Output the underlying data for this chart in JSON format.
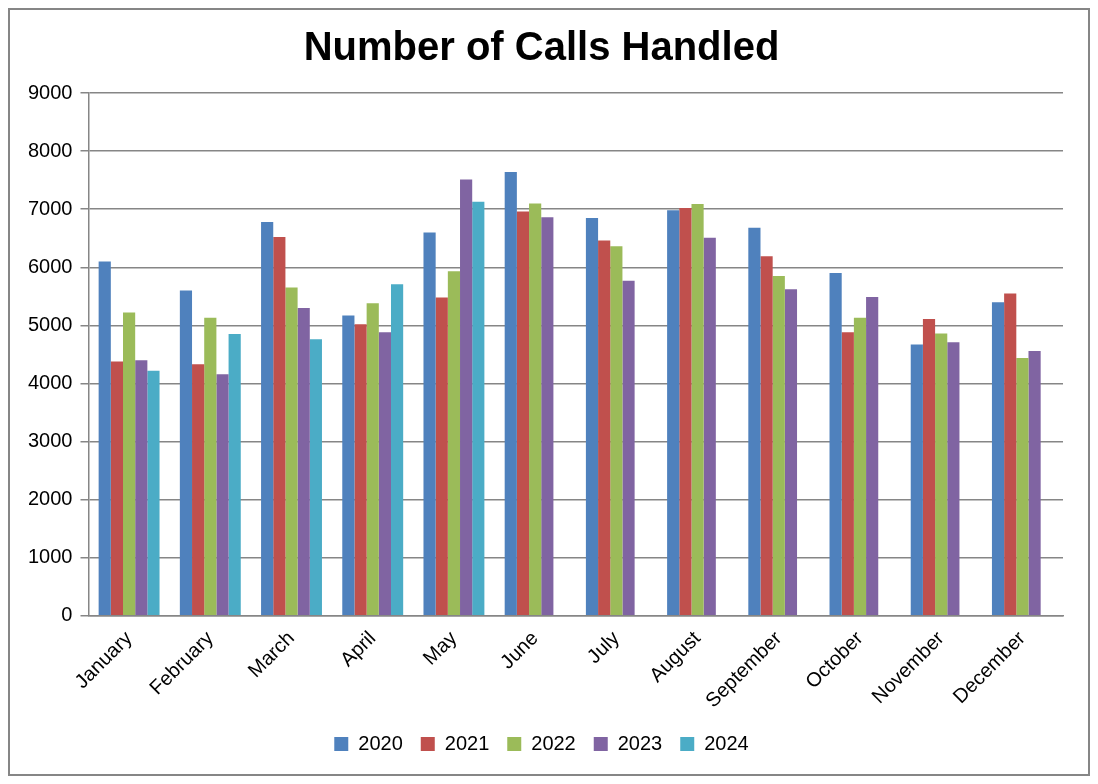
{
  "chart_data": {
    "type": "bar",
    "title": "Number of Calls Handled",
    "categories": [
      "January",
      "February",
      "March",
      "April",
      "May",
      "June",
      "July",
      "August",
      "September",
      "October",
      "November",
      "December"
    ],
    "series": [
      {
        "name": "2020",
        "color": "#4f81bd",
        "values": [
          6100,
          5600,
          6780,
          5170,
          6600,
          7640,
          6850,
          6980,
          6680,
          5900,
          4670,
          5400
        ]
      },
      {
        "name": "2021",
        "color": "#c0504d",
        "values": [
          4380,
          4330,
          6520,
          5020,
          5480,
          6960,
          6460,
          7020,
          6190,
          4880,
          5110,
          5550
        ]
      },
      {
        "name": "2022",
        "color": "#9bbb59",
        "values": [
          5220,
          5130,
          5650,
          5380,
          5930,
          7100,
          6360,
          7090,
          5850,
          5130,
          4860,
          4440
        ]
      },
      {
        "name": "2023",
        "color": "#8064a2",
        "values": [
          4400,
          4160,
          5300,
          4880,
          7510,
          6860,
          5770,
          6510,
          5620,
          5490,
          4710,
          4560
        ]
      },
      {
        "name": "2024",
        "color": "#4bacc6",
        "values": [
          4220,
          4850,
          4760,
          5710,
          7130,
          null,
          null,
          null,
          null,
          null,
          null,
          null
        ]
      }
    ],
    "ylim": [
      0,
      9000
    ],
    "yticks": [
      0,
      1000,
      2000,
      3000,
      4000,
      5000,
      6000,
      7000,
      8000,
      9000
    ],
    "grid": "y",
    "legend": "bottom"
  }
}
